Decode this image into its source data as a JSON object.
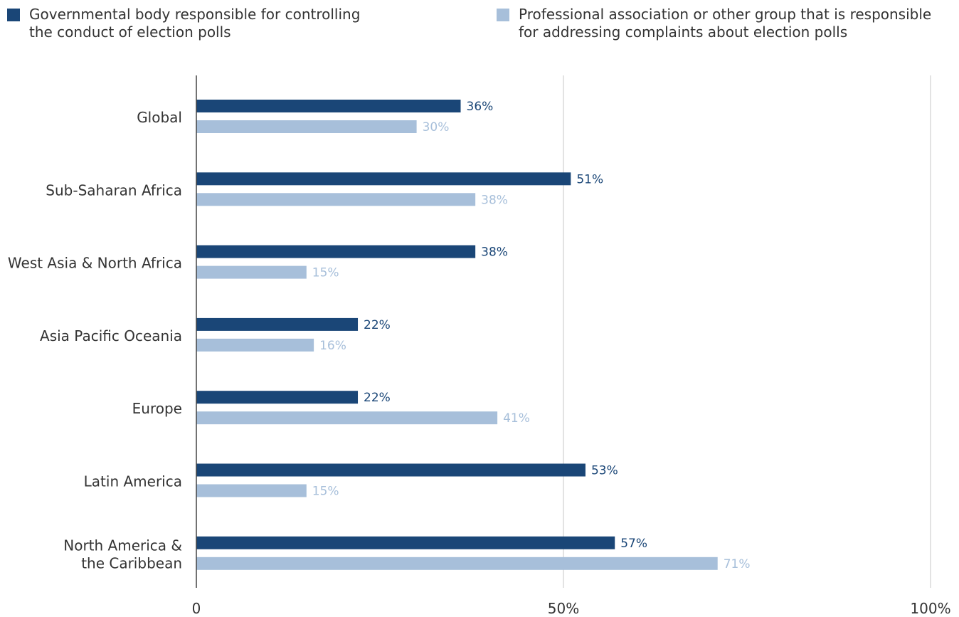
{
  "chart_data": {
    "type": "bar",
    "orientation": "horizontal",
    "categories": [
      "Global",
      "Sub-Saharan Africa",
      "West Asia & North Africa",
      "Asia Pacific Oceania",
      "Europe",
      "Latin America",
      "North America &\nthe Caribbean"
    ],
    "series": [
      {
        "name": "Governmental body responsible for controlling\nthe conduct of election polls",
        "values": [
          36,
          51,
          38,
          22,
          22,
          53,
          57
        ],
        "value_labels": [
          "36%",
          "51%",
          "38%",
          "22%",
          "22%",
          "53%",
          "57%"
        ],
        "color": "#1a4677",
        "label_color": "#1a4677"
      },
      {
        "name": "Professional association or other group that is responsible\nfor addressing complaints about election polls",
        "values": [
          30,
          38,
          15,
          16,
          41,
          15,
          71
        ],
        "value_labels": [
          "30%",
          "38%",
          "15%",
          "16%",
          "41%",
          "15%",
          "71%"
        ],
        "color": "#a7bfda",
        "label_color": "#a7bfda"
      }
    ],
    "xlim": [
      0,
      100
    ],
    "xticks": [
      0,
      50,
      100
    ],
    "xtick_labels": [
      "0",
      "50%",
      "100%"
    ],
    "grid": true,
    "legend_position": "top",
    "title": "",
    "xlabel": "",
    "ylabel": ""
  }
}
